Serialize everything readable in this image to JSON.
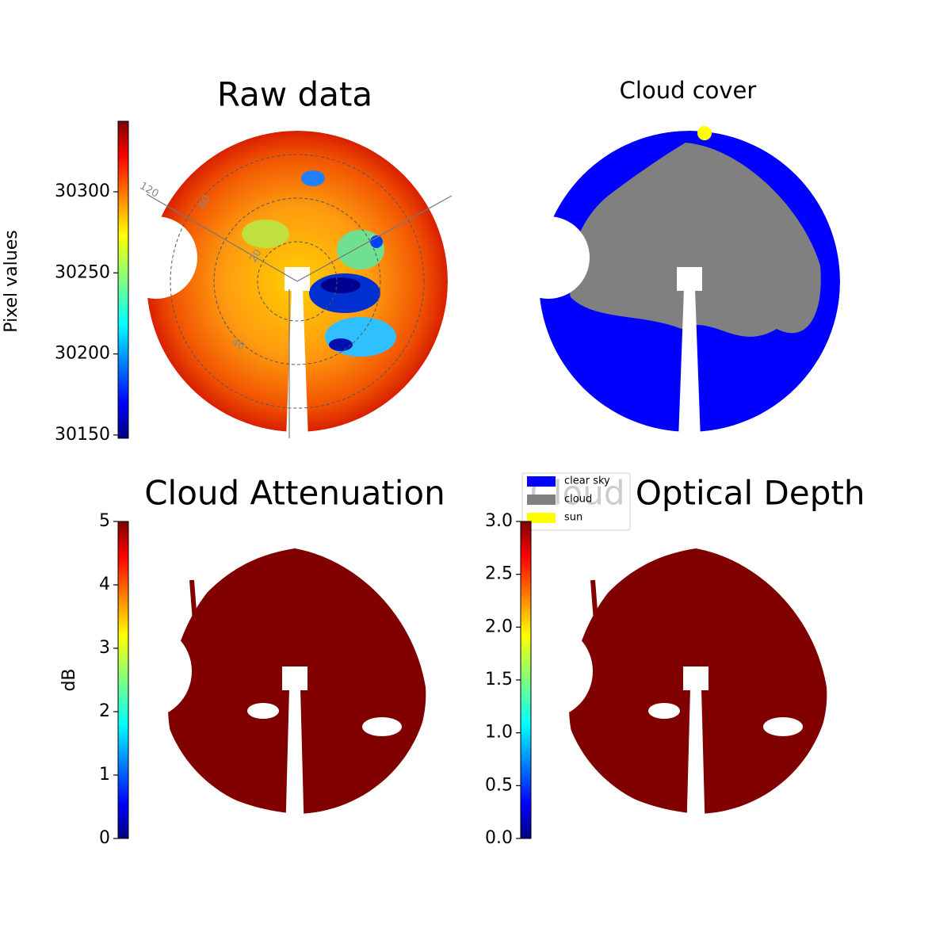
{
  "chart_data": [
    {
      "type": "image",
      "title": "Raw data",
      "ylabel": "Pixel values",
      "colormap": "jet",
      "ylim": [
        30148,
        30343.5
      ],
      "yticks": [
        30150,
        30200,
        30250,
        30300
      ],
      "annotations": [
        "120",
        "60",
        "20",
        "40"
      ]
    },
    {
      "type": "image",
      "title": "Cloud cover",
      "series": [
        {
          "name": "clear sky",
          "color": "#0000ff"
        },
        {
          "name": "cloud",
          "color": "#808080"
        },
        {
          "name": "sun",
          "color": "#ffff00"
        }
      ]
    },
    {
      "type": "image",
      "title": "Cloud Attenuation",
      "ylabel": "dB",
      "colormap": "jet",
      "ylim": [
        0,
        5
      ],
      "yticks": [
        0,
        1,
        2,
        3,
        4,
        5
      ]
    },
    {
      "type": "image",
      "title": "Cloud Optical Depth",
      "colormap": "jet",
      "ylim": [
        0,
        3
      ],
      "yticks": [
        {
          "value": 0,
          "label": "0.0"
        },
        0.5,
        {
          "value": 1,
          "label": "1.0"
        },
        1.5,
        {
          "value": 2,
          "label": "2.0"
        },
        2.5,
        {
          "value": 3,
          "label": "3.0"
        }
      ]
    }
  ]
}
